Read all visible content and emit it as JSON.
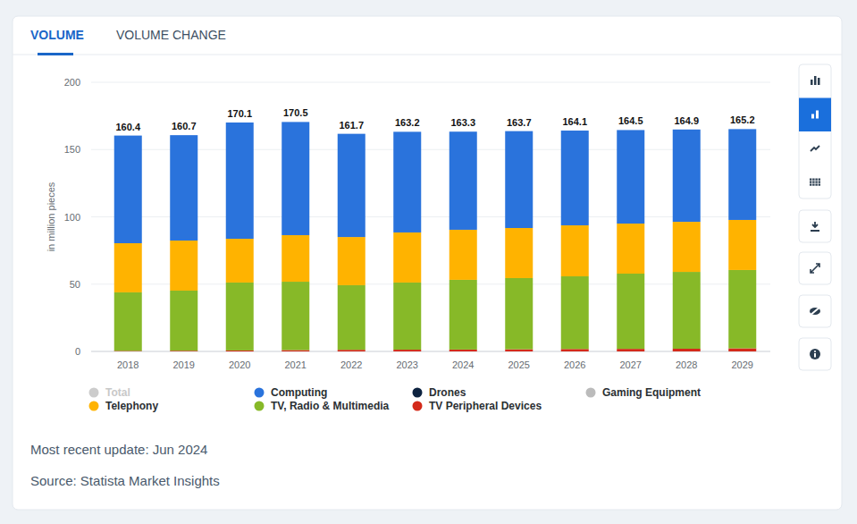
{
  "chart_data": {
    "type": "bar",
    "stacked": true,
    "data_labels": true,
    "grid": true,
    "y_label": "in million pieces",
    "categories": [
      "2018",
      "2019",
      "2020",
      "2021",
      "2022",
      "2023",
      "2024",
      "2025",
      "2026",
      "2027",
      "2028",
      "2029"
    ],
    "ylim": [
      0,
      200
    ],
    "yticks": [
      0,
      50,
      100,
      150,
      200
    ],
    "series": [
      {
        "name": "Total",
        "type": "total",
        "color": "#cccccc",
        "values": [
          160.4,
          160.7,
          170.1,
          170.5,
          161.7,
          163.2,
          163.3,
          163.7,
          164.1,
          164.5,
          164.9,
          165.2
        ]
      },
      {
        "name": "Computing",
        "color": "#2a73dc",
        "values": [
          80.0,
          78.3,
          86.4,
          84.1,
          76.7,
          74.8,
          72.9,
          72.0,
          70.4,
          69.5,
          68.6,
          67.5
        ]
      },
      {
        "name": "Drones",
        "color": "#0d2340",
        "values": [
          0,
          0,
          0,
          0,
          0,
          0,
          0,
          0,
          0,
          0,
          0,
          0
        ]
      },
      {
        "name": "Gaming Equipment",
        "color": "#bbbbbb",
        "values": [
          0,
          0,
          0,
          0,
          0,
          0,
          0,
          0,
          0,
          0,
          0,
          0
        ]
      },
      {
        "name": "Telephony",
        "color": "#ffb300",
        "values": [
          36.5,
          37.2,
          32.5,
          34.6,
          35.8,
          37.2,
          37.2,
          37.2,
          37.9,
          37.2,
          37.2,
          37.2
        ]
      },
      {
        "name": "TV, Radio & Multimedia",
        "color": "#87b928",
        "values": [
          43.5,
          44.7,
          50.5,
          50.8,
          48.0,
          49.9,
          51.8,
          52.9,
          54.0,
          55.9,
          57.1,
          58.2
        ]
      },
      {
        "name": "TV Peripheral Devices",
        "color": "#d42a1a",
        "values": [
          0.4,
          0.5,
          0.7,
          1.0,
          1.2,
          1.3,
          1.4,
          1.6,
          1.8,
          1.9,
          2.0,
          2.3
        ]
      }
    ]
  },
  "tabs": [
    "VOLUME",
    "VOLUME CHANGE"
  ],
  "notes": [
    "Most recent update: Jun 2024",
    "Source: Statista Market Insights"
  ]
}
